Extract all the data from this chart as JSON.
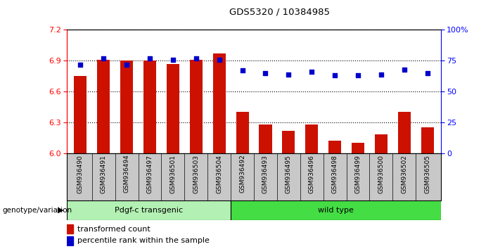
{
  "title": "GDS5320 / 10384985",
  "samples": [
    "GSM936490",
    "GSM936491",
    "GSM936494",
    "GSM936497",
    "GSM936501",
    "GSM936503",
    "GSM936504",
    "GSM936492",
    "GSM936493",
    "GSM936495",
    "GSM936496",
    "GSM936498",
    "GSM936499",
    "GSM936500",
    "GSM936502",
    "GSM936505"
  ],
  "transformed_count": [
    6.75,
    6.91,
    6.9,
    6.9,
    6.87,
    6.91,
    6.97,
    6.4,
    6.28,
    6.22,
    6.28,
    6.12,
    6.1,
    6.18,
    6.4,
    6.25
  ],
  "percentile_rank": [
    72,
    77,
    72,
    77,
    76,
    77,
    76,
    67,
    65,
    64,
    66,
    63,
    63,
    64,
    68,
    65
  ],
  "group_labels": [
    "Pdgf-c transgenic",
    "wild type"
  ],
  "group_spans": [
    7,
    9
  ],
  "group_color_1": "#b3f0b3",
  "group_color_2": "#44dd44",
  "ylim_left": [
    6.0,
    7.2
  ],
  "ylim_right": [
    0,
    100
  ],
  "yticks_left": [
    6.0,
    6.3,
    6.6,
    6.9,
    7.2
  ],
  "yticks_right": [
    0,
    25,
    50,
    75,
    100
  ],
  "bar_color": "#cc1100",
  "dot_color": "#0000cc",
  "bg_color": "#ffffff",
  "xticklabel_bg": "#c8c8c8",
  "legend_items": [
    "transformed count",
    "percentile rank within the sample"
  ]
}
